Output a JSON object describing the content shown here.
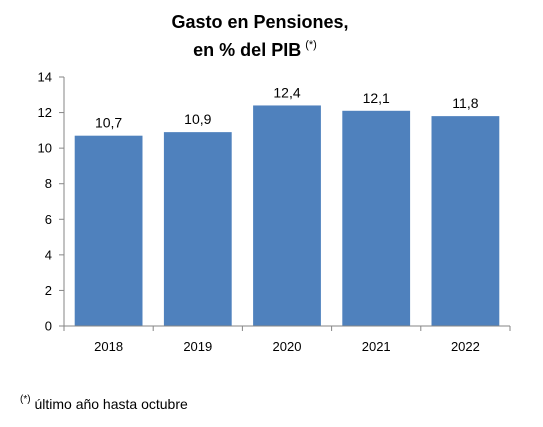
{
  "chart_data": {
    "type": "bar",
    "title_line1": "Gasto en Pensiones,",
    "title_line2": "en % del PIB",
    "title_marker": "(*)",
    "categories": [
      "2018",
      "2019",
      "2020",
      "2021",
      "2022"
    ],
    "values": [
      10.7,
      10.9,
      12.4,
      12.1,
      11.8
    ],
    "value_labels": [
      "10,7",
      "10,9",
      "12,4",
      "12,1",
      "11,8"
    ],
    "yticks": [
      "0",
      "2",
      "4",
      "6",
      "8",
      "10",
      "12",
      "14"
    ],
    "ylim": [
      0,
      14
    ],
    "xlabel": "",
    "ylabel": "",
    "grid": false,
    "bar_color": "#4F81BD"
  },
  "footnote": {
    "marker": "(*)",
    "text": "último año hasta octubre"
  }
}
